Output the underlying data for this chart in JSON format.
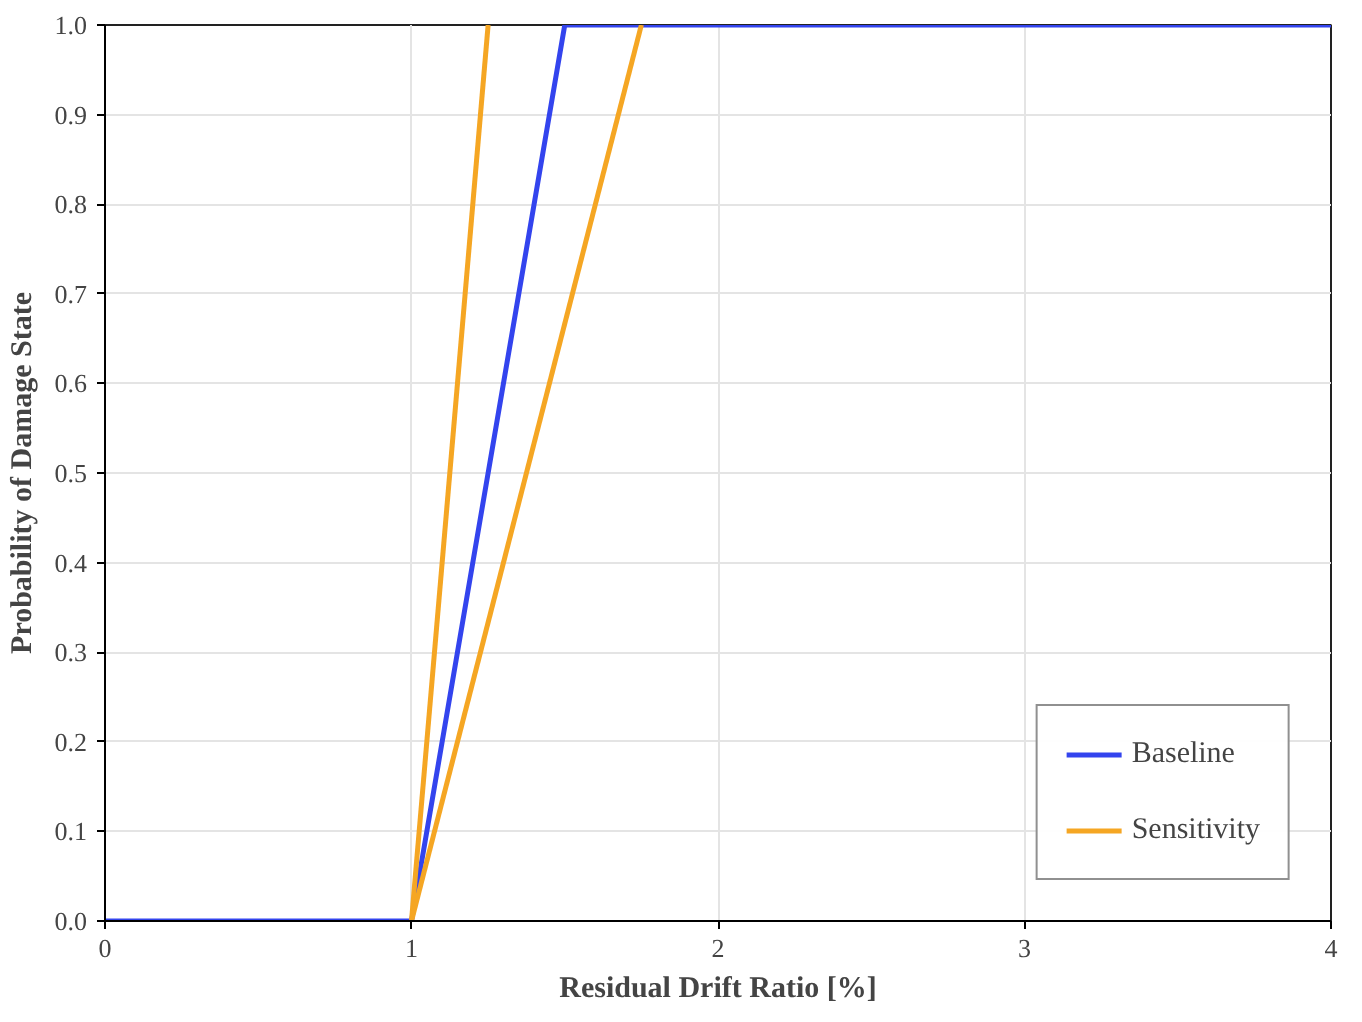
{
  "chart_data": {
    "type": "line",
    "xlabel": "Residual Drift Ratio [%]",
    "ylabel": "Probability of Damage State",
    "series": [
      {
        "name": "Baseline",
        "color": "#3344ee",
        "x": [
          0,
          1,
          1.5,
          4
        ],
        "values": [
          0,
          0,
          1,
          1
        ]
      },
      {
        "name": "Sensitivity",
        "color": "#f5a623",
        "x": [
          1,
          1.25
        ],
        "values": [
          0,
          1
        ]
      },
      {
        "color": "#f5a623",
        "x": [
          1,
          1.75
        ],
        "values": [
          0,
          1
        ]
      }
    ],
    "xlim": [
      0,
      4
    ],
    "ylim": [
      0,
      1
    ],
    "xticks": [
      0,
      1,
      2,
      3,
      4
    ],
    "yticks": [
      {
        "value": 0,
        "label": "0.0"
      },
      {
        "value": 0.1,
        "label": "0.1"
      },
      {
        "value": 0.2,
        "label": "0.2"
      },
      {
        "value": 0.3,
        "label": "0.3"
      },
      {
        "value": 0.4,
        "label": "0.4"
      },
      {
        "value": 0.5,
        "label": "0.5"
      },
      {
        "value": 0.6,
        "label": "0.6"
      },
      {
        "value": 0.7,
        "label": "0.7"
      },
      {
        "value": 0.8,
        "label": "0.8"
      },
      {
        "value": 0.9,
        "label": "0.9"
      },
      {
        "value": 1,
        "label": "1.0"
      }
    ],
    "grid": true,
    "legend": "bottom right",
    "line_style": "solid"
  }
}
